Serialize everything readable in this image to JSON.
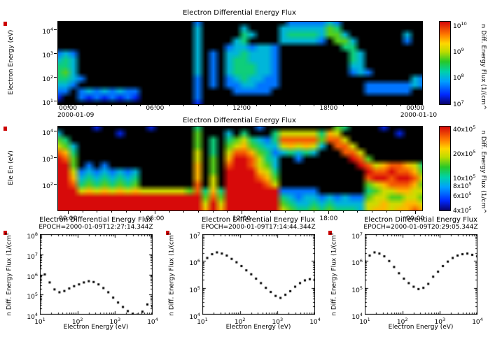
{
  "figure": {
    "background": "#ffffff",
    "warning_marker_color": "#cc0000",
    "warning_marker_count": 5
  },
  "chart_data": [
    {
      "id": "top-spectrogram",
      "type": "heatmap",
      "title": "Electron Differential Energy Flux",
      "ylabel": "Electron Energy (eV)",
      "yticks": [
        "10^4",
        "10^3",
        "10^2",
        "10^1"
      ],
      "ylim": [
        10,
        10000
      ],
      "xticks": [
        "00:00",
        "06:00",
        "12:00",
        "18:00",
        "00:00"
      ],
      "date_left": "2000-01-09",
      "date_right": "2000-01-10",
      "colorbar": {
        "label": "n Diff. Energy Flux (1/(cm^",
        "ticks": [
          "10^10",
          "10^9",
          "10^8",
          "10^7"
        ],
        "clim": [
          10000000.0,
          10000000000.0
        ]
      },
      "grid_encoding": "rows top(10^4 eV) to bottom(10^1 eV), 48 time columns over 24h, char 0-9 = relative log flux (0=below scale/black)",
      "grid": [
        "000000000000000000200000000000222223200000000000",
        "000000000000000000300000300003333335400000000000",
        "000000000000000000300000430003444435530000000300",
        "000000000000000000300003400003333320553000000200",
        "000000000000000000300023323320000000044000000000",
        "232000000000000000302033433320000000004300000000",
        "343000000000000000302034433320000000004300000000",
        "443000000000000000302034443320000000003300000000",
        "453000000000000000302034443320000000002320000000",
        "443200000000000000202023433220000000000000000032",
        "332000000000000000202022332220000000000022222232",
        "220232323220000000200002222200000000000022222200",
        "100212121210000000200000000000000000000000000000",
        "000000000000000000100000000000000000000000000000"
      ]
    },
    {
      "id": "middle-spectrogram",
      "type": "heatmap",
      "title": "Electron Differential Energy Flux",
      "ylabel": "Ele En (eV)",
      "yticks": [
        "10^4",
        "10^3",
        "10^2"
      ],
      "ylim": [
        10,
        10000
      ],
      "xticks": [
        "00:00",
        "06:00",
        "12:00",
        "18:00",
        "00:00"
      ],
      "colorbar": {
        "label": "n Diff. Energy Flux (1/cm^",
        "ticks": [
          "40x10^5",
          "20x10^5",
          "10x10^5",
          "8x10^5",
          "6x10^5",
          "4x10^5"
        ],
        "clim": [
          400000.0,
          4000000.0
        ]
      },
      "grid_encoding": "rows top(10^4 eV) to bottom(10^1 eV), 48 time columns over 24h, char 0-9 = relative log flux (0=below scale/black)",
      "grid": [
        "000001000000100000400000002000000000540000100000",
        "300000001000000000500030400046666647600000001000",
        "540000000000000000504045643248888858860000000000",
        "653000000000000000504056754336767630886000000000",
        "874000000000000000604068875423434300088600000000",
        "985000000000000000605079986430020000009850000000",
        "995020200000000000705089986530000000000986788764",
        "996232323230000000705099997640000000000098898875",
        "997343434340000000706099998750000000000089989986",
        "998454545450000000806099999860000000000056788875",
        "999676767676666665847499999992222200000045667766",
        "999999999999999999958599999994323323232256655665",
        "999999999999999999969699999995433434333366766776",
        "999999999999999999979799999996544545444367767787"
      ]
    },
    {
      "id": "profile-1",
      "type": "scatter",
      "title": "Electron Differential Energy Flux",
      "subtitle": "EPOCH=2000-01-09T12:27:14.344Z",
      "xlabel": "Electron Energy (eV)",
      "ylabel": "n Diff. Energy Flux (1/(cm^2",
      "xticks": [
        "10^1",
        "10^2",
        "10^3",
        "10^4"
      ],
      "yticks": [
        "10^8",
        "10^7",
        "10^6",
        "10^5",
        "10^4"
      ],
      "xlim": [
        10,
        10000
      ],
      "ylim": [
        10000,
        100000000
      ],
      "x": [
        10,
        13.5,
        18.2,
        24.5,
        33.1,
        44.7,
        60.3,
        81.3,
        110,
        148,
        200,
        269,
        363,
        490,
        661,
        891,
        1202,
        1622,
        2188,
        2951,
        3981,
        5370,
        7244,
        9772
      ],
      "y": [
        2500000,
        1000000,
        400000,
        180000,
        130000,
        150000,
        200000,
        260000,
        320000,
        400000,
        460000,
        420000,
        320000,
        210000,
        130000,
        70000,
        40000,
        24000,
        15000,
        11000,
        10000,
        14000,
        32000,
        26000
      ]
    },
    {
      "id": "profile-2",
      "type": "scatter",
      "title": "Electron Differential Energy Flux",
      "subtitle": "EPOCH=2000-01-09T17:14:44.344Z",
      "xlabel": "Electron Energy (eV)",
      "ylabel": "n Diff. Energy Flux (1/(cm^2",
      "xticks": [
        "10^1",
        "10^2",
        "10^3",
        "10^4"
      ],
      "yticks": [
        "10^7",
        "10^6",
        "10^5",
        "10^4"
      ],
      "xlim": [
        10,
        10000
      ],
      "ylim": [
        10000,
        10000000
      ],
      "x": [
        10,
        13.5,
        18.2,
        24.5,
        33.1,
        44.7,
        60.3,
        81.3,
        110,
        148,
        200,
        269,
        363,
        490,
        661,
        891,
        1202,
        1622,
        2188,
        2951,
        3981,
        5370,
        7244,
        9772
      ],
      "y": [
        800000,
        1300000,
        1800000,
        2100000,
        1900000,
        1600000,
        1200000,
        900000,
        650000,
        450000,
        320000,
        220000,
        150000,
        100000,
        70000,
        50000,
        42000,
        55000,
        75000,
        110000,
        150000,
        190000,
        210000,
        200000
      ]
    },
    {
      "id": "profile-3",
      "type": "scatter",
      "title": "Electron Differential Energy Flux",
      "subtitle": "EPOCH=2000-01-09T20:29:05.344Z",
      "xlabel": "Electron Energy (eV)",
      "ylabel": "n Diff. Energy Flux (1/(cm^2",
      "xticks": [
        "10^1",
        "10^2",
        "10^3",
        "10^4"
      ],
      "yticks": [
        "10^7",
        "10^6",
        "10^5",
        "10^4"
      ],
      "xlim": [
        10,
        10000
      ],
      "ylim": [
        10000,
        10000000
      ],
      "x": [
        10,
        13.5,
        18.2,
        24.5,
        33.1,
        44.7,
        60.3,
        81.3,
        110,
        148,
        200,
        269,
        363,
        490,
        661,
        891,
        1202,
        1622,
        2188,
        2951,
        3981,
        5370,
        7244,
        9772
      ],
      "y": [
        1000000,
        1600000,
        2100000,
        1900000,
        1500000,
        1000000,
        600000,
        350000,
        220000,
        150000,
        110000,
        90000,
        100000,
        140000,
        260000,
        400000,
        650000,
        950000,
        1300000,
        1600000,
        1800000,
        1900000,
        1700000,
        1500000
      ]
    }
  ]
}
